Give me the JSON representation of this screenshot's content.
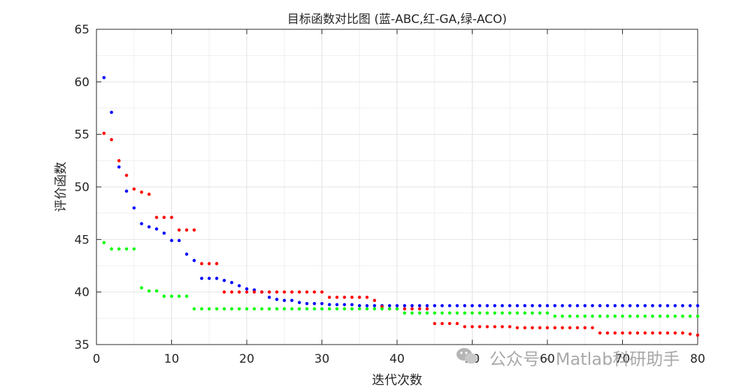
{
  "chart_data": {
    "type": "scatter",
    "title": "目标函数对比图 (蓝-ABC,红-GA,绿-ACO)",
    "xlabel": "迭代次数",
    "ylabel": "评价函数",
    "xlim": [
      0,
      80
    ],
    "ylim": [
      35,
      65
    ],
    "xticks": [
      0,
      10,
      20,
      30,
      40,
      50,
      60,
      70,
      80
    ],
    "yticks": [
      35,
      40,
      45,
      50,
      55,
      60,
      65
    ],
    "grid": true,
    "x": [
      1,
      2,
      3,
      4,
      5,
      6,
      7,
      8,
      9,
      10,
      11,
      12,
      13,
      14,
      15,
      16,
      17,
      18,
      19,
      20,
      21,
      22,
      23,
      24,
      25,
      26,
      27,
      28,
      29,
      30,
      31,
      32,
      33,
      34,
      35,
      36,
      37,
      38,
      39,
      40,
      41,
      42,
      43,
      44,
      45,
      46,
      47,
      48,
      49,
      50,
      51,
      52,
      53,
      54,
      55,
      56,
      57,
      58,
      59,
      60,
      61,
      62,
      63,
      64,
      65,
      66,
      67,
      68,
      69,
      70,
      71,
      72,
      73,
      74,
      75,
      76,
      77,
      78,
      79,
      80
    ],
    "series": [
      {
        "name": "ABC",
        "color": "#0000ff",
        "values": [
          60.4,
          57.1,
          51.9,
          49.6,
          48.0,
          46.5,
          46.2,
          46.0,
          45.6,
          44.9,
          44.9,
          43.6,
          43.0,
          41.3,
          41.3,
          41.3,
          41.1,
          40.9,
          40.6,
          40.3,
          40.2,
          40.0,
          39.5,
          39.3,
          39.2,
          39.2,
          39.0,
          38.9,
          38.9,
          38.9,
          38.8,
          38.8,
          38.8,
          38.8,
          38.7,
          38.7,
          38.7,
          38.7,
          38.7,
          38.7,
          38.7,
          38.7,
          38.7,
          38.7,
          38.7,
          38.7,
          38.7,
          38.7,
          38.7,
          38.7,
          38.7,
          38.7,
          38.7,
          38.7,
          38.7,
          38.7,
          38.7,
          38.7,
          38.7,
          38.7,
          38.7,
          38.7,
          38.7,
          38.7,
          38.7,
          38.7,
          38.7,
          38.7,
          38.7,
          38.7,
          38.7,
          38.7,
          38.7,
          38.7,
          38.7,
          38.7,
          38.7,
          38.7,
          38.7,
          38.7
        ]
      },
      {
        "name": "GA",
        "color": "#ff0000",
        "values": [
          55.1,
          54.5,
          52.5,
          51.1,
          49.8,
          49.5,
          49.3,
          47.1,
          47.1,
          47.1,
          45.9,
          45.9,
          45.9,
          42.7,
          42.7,
          42.7,
          40.0,
          40.0,
          40.0,
          40.0,
          40.0,
          40.0,
          40.0,
          40.0,
          40.0,
          40.0,
          40.0,
          40.0,
          40.0,
          40.0,
          39.5,
          39.5,
          39.5,
          39.5,
          39.5,
          39.5,
          39.2,
          38.6,
          38.4,
          38.4,
          38.4,
          38.4,
          38.4,
          38.4,
          37.0,
          37.0,
          37.0,
          37.0,
          36.7,
          36.7,
          36.7,
          36.7,
          36.7,
          36.7,
          36.7,
          36.6,
          36.6,
          36.6,
          36.6,
          36.6,
          36.6,
          36.6,
          36.6,
          36.6,
          36.6,
          36.6,
          36.1,
          36.1,
          36.1,
          36.1,
          36.1,
          36.1,
          36.1,
          36.1,
          36.1,
          36.1,
          36.1,
          36.1,
          36.0,
          35.9
        ]
      },
      {
        "name": "ACO",
        "color": "#00ff00",
        "values": [
          44.7,
          44.1,
          44.1,
          44.1,
          44.1,
          40.4,
          40.1,
          40.1,
          39.6,
          39.6,
          39.6,
          39.6,
          38.4,
          38.4,
          38.4,
          38.4,
          38.4,
          38.4,
          38.4,
          38.4,
          38.4,
          38.4,
          38.4,
          38.4,
          38.4,
          38.4,
          38.4,
          38.4,
          38.4,
          38.4,
          38.4,
          38.4,
          38.4,
          38.4,
          38.4,
          38.4,
          38.4,
          38.4,
          38.4,
          38.4,
          38.0,
          38.0,
          38.0,
          38.0,
          38.0,
          38.0,
          38.0,
          38.0,
          38.0,
          38.0,
          38.0,
          38.0,
          38.0,
          38.0,
          38.0,
          38.0,
          38.0,
          38.0,
          38.0,
          38.0,
          37.7,
          37.7,
          37.7,
          37.7,
          37.7,
          37.7,
          37.7,
          37.7,
          37.7,
          37.7,
          37.7,
          37.7,
          37.7,
          37.7,
          37.7,
          37.7,
          37.7,
          37.7,
          37.7,
          37.7
        ]
      }
    ]
  },
  "watermark": {
    "text": "公众号 · Matlab科研助手",
    "icon": "wechat-icon"
  }
}
